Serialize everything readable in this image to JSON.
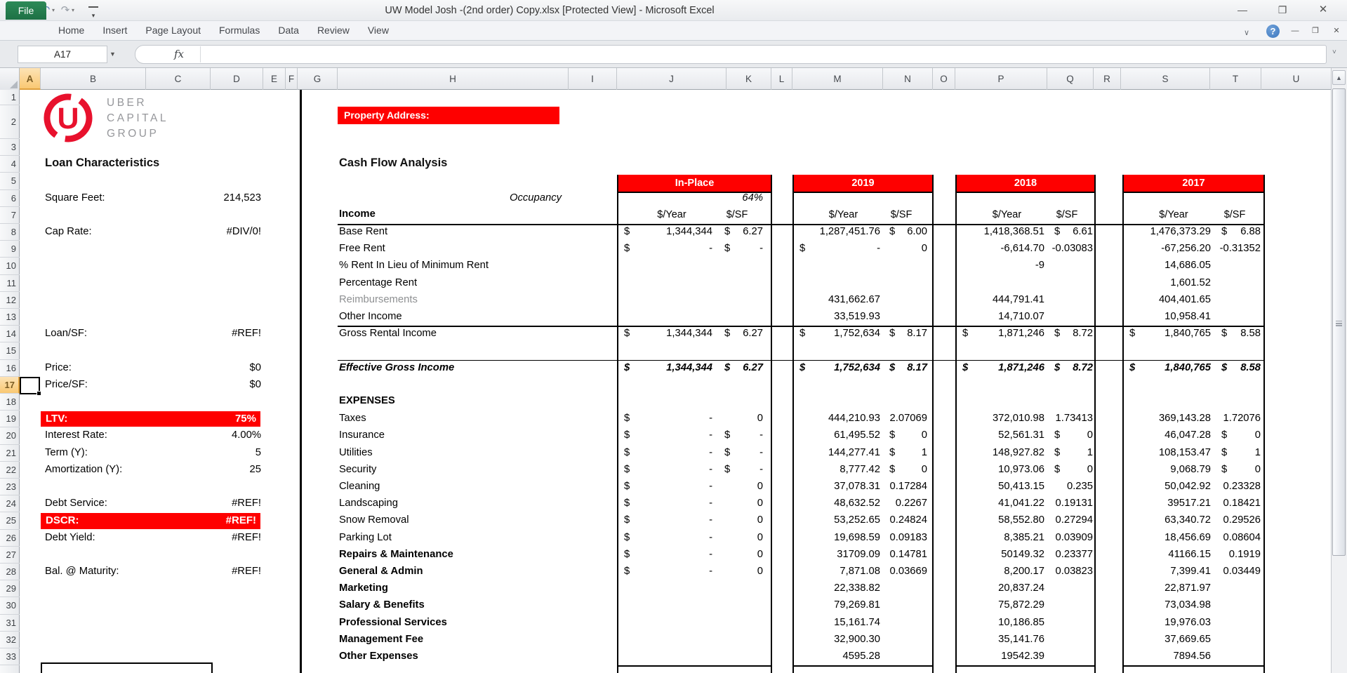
{
  "window": {
    "title": "UW Model Josh -(2nd order) Copy.xlsx  [Protected View]  -  Microsoft Excel",
    "controls": {
      "minimize": "—",
      "restore": "❐",
      "close": "✕"
    },
    "doc_controls": {
      "minimize": "—",
      "restore": "❐",
      "close": "✕"
    }
  },
  "quick_access": {
    "undo": "↶",
    "redo": "↷",
    "more": "▾"
  },
  "ribbon": {
    "file_label": "File",
    "tabs": [
      "Home",
      "Insert",
      "Page Layout",
      "Formulas",
      "Data",
      "Review",
      "View"
    ],
    "collapse_chevron": "∨",
    "help": "?"
  },
  "formula_bar": {
    "name_box": "A17",
    "dropdown": "▼",
    "fx": "fx",
    "value": "",
    "chevron": "˅"
  },
  "sheet": {
    "columns": [
      "A",
      "B",
      "C",
      "D",
      "E",
      "F",
      "G",
      "H",
      "I",
      "J",
      "K",
      "L",
      "M",
      "N",
      "O",
      "P",
      "Q",
      "R",
      "S",
      "T",
      "U"
    ],
    "selected_column": "A",
    "selected_row": 17,
    "row_count": 33
  },
  "logo": {
    "letter": "U",
    "lines": [
      "UBER",
      "CAPITAL",
      "GROUP"
    ],
    "ring_color": "#e8112d"
  },
  "left_panel": {
    "title": "Loan Characteristics",
    "fields": [
      {
        "row": 6,
        "label": "Square Feet:",
        "value": "214,523"
      },
      {
        "row": 8,
        "label": "Cap Rate:",
        "value": "#DIV/0!"
      },
      {
        "row": 14,
        "label": "Loan/SF:",
        "value": "#REF!"
      },
      {
        "row": 16,
        "label": "Price:",
        "value": "$0"
      },
      {
        "row": 17,
        "label": "Price/SF:",
        "value": "$0"
      },
      {
        "row": 19,
        "label": "LTV:",
        "value": "75%",
        "banner": true
      },
      {
        "row": 20,
        "label": "Interest Rate:",
        "value": "4.00%"
      },
      {
        "row": 21,
        "label": "Term (Y):",
        "value": "5"
      },
      {
        "row": 22,
        "label": "Amortization (Y):",
        "value": "25"
      },
      {
        "row": 24,
        "label": "Debt Service:",
        "value": "#REF!"
      },
      {
        "row": 25,
        "label": "DSCR:",
        "value": "#REF!",
        "banner": true
      },
      {
        "row": 26,
        "label": "Debt Yield:",
        "value": "#REF!"
      },
      {
        "row": 28,
        "label": "Bal. @ Maturity:",
        "value": "#REF!"
      }
    ]
  },
  "cashflow": {
    "property_banner": "Property Address:",
    "title": "Cash Flow Analysis",
    "occupancy_label": "Occupancy",
    "occupancy_value": "64%",
    "income_label": "Income",
    "expenses_label": "EXPENSES",
    "unit_year": "$/Year",
    "unit_sf": "$/SF",
    "column_headers": {
      "inplace": "In-Place",
      "y2019": "2019",
      "y2018": "2018",
      "y2017": "2017"
    },
    "rows": [
      {
        "row": 8,
        "label": "Base Rent",
        "cells": {
          "inplace": {
            "d1": "$",
            "v1": "1,344,344",
            "d2": "$",
            "v2": "6.27"
          },
          "y2019": {
            "v1": "1,287,451.76",
            "d2": "$",
            "v2": "6.00"
          },
          "y2018": {
            "v1": "1,418,368.51",
            "d2": "$",
            "v2": "6.61"
          },
          "y2017": {
            "v1": "1,476,373.29",
            "d2": "$",
            "v2": "6.88"
          }
        }
      },
      {
        "row": 9,
        "label": "Free Rent",
        "cells": {
          "inplace": {
            "d1": "$",
            "v1": "-",
            "d2": "$",
            "v2": "-"
          },
          "y2019": {
            "d1": "$",
            "v1": "-",
            "v2": "0"
          },
          "y2018": {
            "v1": "-6,614.70",
            "v2": "-0.03083"
          },
          "y2017": {
            "v1": "-67,256.20",
            "v2": "-0.31352"
          }
        }
      },
      {
        "row": 10,
        "label": "% Rent In Lieu of Minimum Rent",
        "cells": {
          "y2018": {
            "v1": "-9"
          },
          "y2017": {
            "v1": "14,686.05"
          }
        }
      },
      {
        "row": 11,
        "label": "Percentage Rent",
        "cells": {
          "y2017": {
            "v1": "1,601.52"
          }
        }
      },
      {
        "row": 12,
        "label": "Reimbursements",
        "muted": true,
        "cells": {
          "y2019": {
            "v1": "431,662.67"
          },
          "y2018": {
            "v1": "444,791.41"
          },
          "y2017": {
            "v1": "404,401.65"
          }
        }
      },
      {
        "row": 13,
        "label": "Other Income",
        "cells": {
          "y2019": {
            "v1": "33,519.93"
          },
          "y2018": {
            "v1": "14,710.07"
          },
          "y2017": {
            "v1": "10,958.41"
          }
        }
      },
      {
        "row": 14,
        "label": "Gross Rental Income",
        "cells": {
          "inplace": {
            "d1": "$",
            "v1": "1,344,344",
            "d2": "$",
            "v2": "6.27"
          },
          "y2019": {
            "d1": "$",
            "v1": "1,752,634",
            "d2": "$",
            "v2": "8.17"
          },
          "y2018": {
            "d1": "$",
            "v1": "1,871,246",
            "d2": "$",
            "v2": "8.72"
          },
          "y2017": {
            "d1": "$",
            "v1": "1,840,765",
            "d2": "$",
            "v2": "8.58"
          }
        }
      },
      {
        "row": 16,
        "label": "Effective Gross Income",
        "emph": true,
        "cells": {
          "inplace": {
            "d1": "$",
            "v1": "1,344,344",
            "d2": "$",
            "v2": "6.27"
          },
          "y2019": {
            "d1": "$",
            "v1": "1,752,634",
            "d2": "$",
            "v2": "8.17"
          },
          "y2018": {
            "d1": "$",
            "v1": "1,871,246",
            "d2": "$",
            "v2": "8.72"
          },
          "y2017": {
            "d1": "$",
            "v1": "1,840,765",
            "d2": "$",
            "v2": "8.58"
          }
        }
      },
      {
        "row": 19,
        "label": "Taxes",
        "cells": {
          "inplace": {
            "d1": "$",
            "v1": "-",
            "v2": "0"
          },
          "y2019": {
            "v1": "444,210.93",
            "v2": "2.07069"
          },
          "y2018": {
            "v1": "372,010.98",
            "v2": "1.73413"
          },
          "y2017": {
            "v1": "369,143.28",
            "v2": "1.72076"
          }
        }
      },
      {
        "row": 20,
        "label": "Insurance",
        "cells": {
          "inplace": {
            "d1": "$",
            "v1": "-",
            "d2": "$",
            "v2": "-"
          },
          "y2019": {
            "v1": "61,495.52",
            "d2": "$",
            "v2": "0"
          },
          "y2018": {
            "v1": "52,561.31",
            "d2": "$",
            "v2": "0"
          },
          "y2017": {
            "v1": "46,047.28",
            "d2": "$",
            "v2": "0"
          }
        }
      },
      {
        "row": 21,
        "label": "Utilities",
        "cells": {
          "inplace": {
            "d1": "$",
            "v1": "-",
            "d2": "$",
            "v2": "-"
          },
          "y2019": {
            "v1": "144,277.41",
            "d2": "$",
            "v2": "1"
          },
          "y2018": {
            "v1": "148,927.82",
            "d2": "$",
            "v2": "1"
          },
          "y2017": {
            "v1": "108,153.47",
            "d2": "$",
            "v2": "1"
          }
        }
      },
      {
        "row": 22,
        "label": "Security",
        "cells": {
          "inplace": {
            "d1": "$",
            "v1": "-",
            "d2": "$",
            "v2": "-"
          },
          "y2019": {
            "v1": "8,777.42",
            "d2": "$",
            "v2": "0"
          },
          "y2018": {
            "v1": "10,973.06",
            "d2": "$",
            "v2": "0"
          },
          "y2017": {
            "v1": "9,068.79",
            "d2": "$",
            "v2": "0"
          }
        }
      },
      {
        "row": 23,
        "label": "Cleaning",
        "cells": {
          "inplace": {
            "d1": "$",
            "v1": "-",
            "v2": "0"
          },
          "y2019": {
            "v1": "37,078.31",
            "v2": "0.17284"
          },
          "y2018": {
            "v1": "50,413.15",
            "v2": "0.235"
          },
          "y2017": {
            "v1": "50,042.92",
            "v2": "0.23328"
          }
        }
      },
      {
        "row": 24,
        "label": "Landscaping",
        "cells": {
          "inplace": {
            "d1": "$",
            "v1": "-",
            "v2": "0"
          },
          "y2019": {
            "v1": "48,632.52",
            "v2": "0.2267"
          },
          "y2018": {
            "v1": "41,041.22",
            "v2": "0.19131"
          },
          "y2017": {
            "v1": "39517.21",
            "v2": "0.18421"
          }
        }
      },
      {
        "row": 25,
        "label": "Snow Removal",
        "cells": {
          "inplace": {
            "d1": "$",
            "v1": "-",
            "v2": "0"
          },
          "y2019": {
            "v1": "53,252.65",
            "v2": "0.24824"
          },
          "y2018": {
            "v1": "58,552.80",
            "v2": "0.27294"
          },
          "y2017": {
            "v1": "63,340.72",
            "v2": "0.29526"
          }
        }
      },
      {
        "row": 26,
        "label": "Parking Lot",
        "cells": {
          "inplace": {
            "d1": "$",
            "v1": "-",
            "v2": "0"
          },
          "y2019": {
            "v1": "19,698.59",
            "v2": "0.09183"
          },
          "y2018": {
            "v1": "8,385.21",
            "v2": "0.03909"
          },
          "y2017": {
            "v1": "18,456.69",
            "v2": "0.08604"
          }
        }
      },
      {
        "row": 27,
        "label": "Repairs & Maintenance",
        "bold": true,
        "cells": {
          "inplace": {
            "d1": "$",
            "v1": "-",
            "v2": "0"
          },
          "y2019": {
            "v1": "31709.09",
            "v2": "0.14781"
          },
          "y2018": {
            "v1": "50149.32",
            "v2": "0.23377"
          },
          "y2017": {
            "v1": "41166.15",
            "v2": "0.1919"
          }
        }
      },
      {
        "row": 28,
        "label": "General & Admin",
        "bold": true,
        "cells": {
          "inplace": {
            "d1": "$",
            "v1": "-",
            "v2": "0"
          },
          "y2019": {
            "v1": "7,871.08",
            "v2": "0.03669"
          },
          "y2018": {
            "v1": "8,200.17",
            "v2": "0.03823"
          },
          "y2017": {
            "v1": "7,399.41",
            "v2": "0.03449"
          }
        }
      },
      {
        "row": 29,
        "label": "Marketing",
        "bold": true,
        "cells": {
          "y2019": {
            "v1": "22,338.82"
          },
          "y2018": {
            "v1": "20,837.24"
          },
          "y2017": {
            "v1": "22,871.97"
          }
        }
      },
      {
        "row": 30,
        "label": "Salary & Benefits",
        "bold": true,
        "cells": {
          "y2019": {
            "v1": "79,269.81"
          },
          "y2018": {
            "v1": "75,872.29"
          },
          "y2017": {
            "v1": "73,034.98"
          }
        }
      },
      {
        "row": 31,
        "label": "Professional Services",
        "bold": true,
        "cells": {
          "y2019": {
            "v1": "15,161.74"
          },
          "y2018": {
            "v1": "10,186.85"
          },
          "y2017": {
            "v1": "19,976.03"
          }
        }
      },
      {
        "row": 32,
        "label": "Management Fee",
        "bold": true,
        "cells": {
          "y2019": {
            "v1": "32,900.30"
          },
          "y2018": {
            "v1": "35,141.76"
          },
          "y2017": {
            "v1": "37,669.65"
          }
        }
      },
      {
        "row": 33,
        "label": "Other Expenses",
        "bold": true,
        "cells": {
          "y2019": {
            "v1": "4595.28"
          },
          "y2018": {
            "v1": "19542.39"
          },
          "y2017": {
            "v1": "7894.56"
          }
        }
      }
    ]
  },
  "colors": {
    "banner_red": "#fe0000",
    "file_tab_green": "#1e7145",
    "selection_orange": "#f9c873"
  }
}
